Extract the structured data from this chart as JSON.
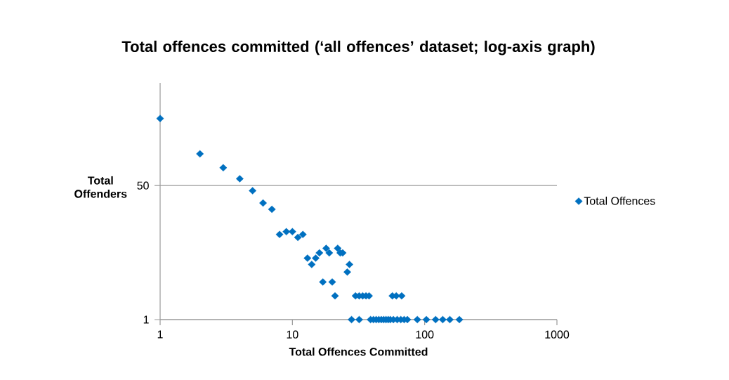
{
  "chart_data": {
    "type": "scatter",
    "title": "Total offences committed (‘all offences’ dataset; log-axis graph)",
    "xlabel": "Total Offences Committed",
    "ylabel": "Total Offenders",
    "series": [
      {
        "name": "Total Offences",
        "color": "#0070c0",
        "x": [
          1,
          2,
          3,
          4,
          5,
          6,
          7,
          8,
          9,
          10,
          11,
          12,
          13,
          14,
          15,
          16,
          17,
          18,
          19,
          20,
          21,
          22,
          23,
          24,
          26,
          27,
          30,
          32,
          34,
          36,
          38,
          57,
          61,
          67,
          28,
          32,
          39,
          41,
          43,
          45,
          47,
          49,
          51,
          53,
          55,
          58,
          62,
          66,
          70,
          74,
          88,
          103,
          121,
          137,
          155,
          183
        ],
        "values": [
          354,
          126,
          84,
          61,
          43,
          30,
          25,
          12,
          13,
          13,
          11,
          12,
          6,
          5,
          6,
          7,
          3,
          8,
          7,
          3,
          2,
          8,
          7,
          7,
          4,
          5,
          2,
          2,
          2,
          2,
          2,
          2,
          2,
          2,
          1,
          1,
          1,
          1,
          1,
          1,
          1,
          1,
          1,
          1,
          1,
          1,
          1,
          1,
          1,
          1,
          1,
          1,
          1,
          1,
          1,
          1
        ]
      }
    ],
    "log": "xy",
    "xlim": [
      1,
      1000
    ],
    "ylim": [
      1,
      1000
    ],
    "xticks": [
      1,
      10,
      100,
      1000
    ],
    "yticks": [
      1,
      50
    ],
    "grid": "y",
    "legend": "right",
    "marker": "diamond"
  }
}
